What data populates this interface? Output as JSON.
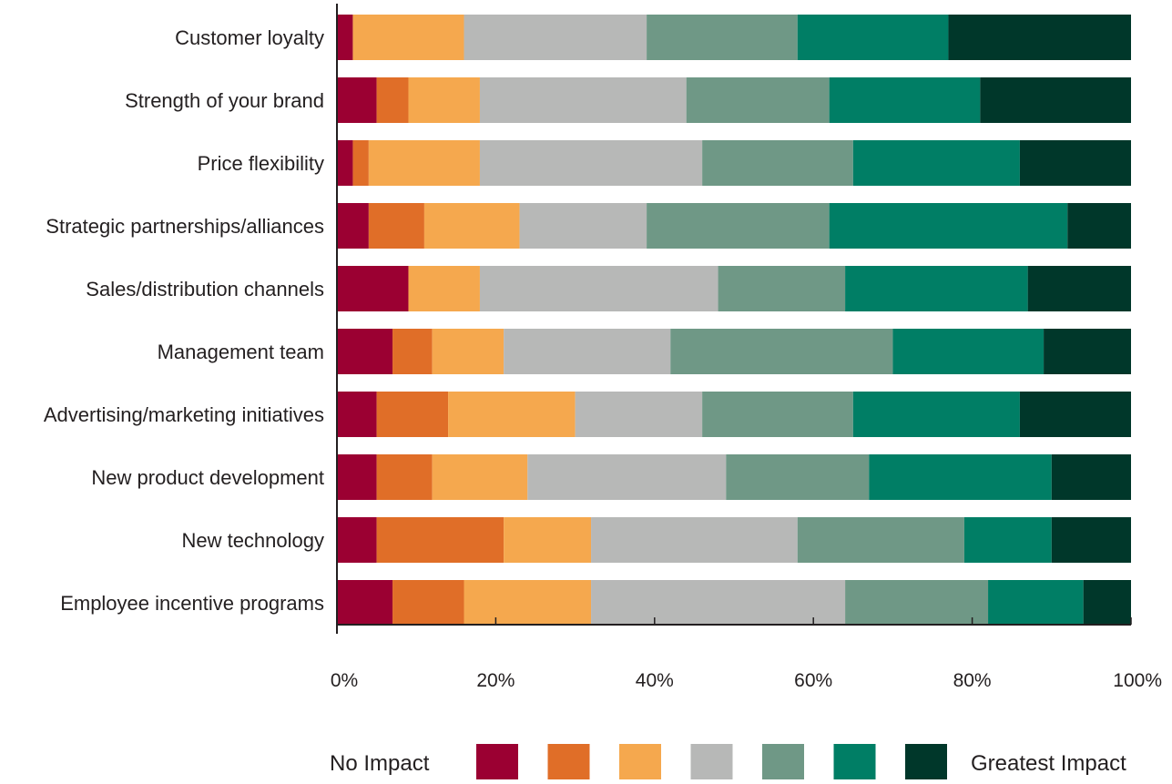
{
  "chart_data": {
    "type": "bar",
    "orientation": "horizontal",
    "stacked": true,
    "percent_stacked": true,
    "title": "",
    "xlabel": "",
    "ylabel": "",
    "xlim": [
      0,
      100
    ],
    "x_ticks": [
      "0%",
      "20%",
      "40%",
      "60%",
      "80%",
      "100%"
    ],
    "grid": false,
    "legend": {
      "placement": "bottom",
      "low_label": "No Impact",
      "high_label": "Greatest Impact"
    },
    "categories": [
      "Customer loyalty",
      "Strength of your brand",
      "Price flexibility",
      "Strategic partnerships/alliances",
      "Sales/distribution channels",
      "Management team",
      "Advertising/marketing initiatives",
      "New product development",
      "New technology",
      "Employee incentive programs"
    ],
    "series": [
      {
        "color": "#9b0032",
        "values": [
          2,
          5,
          2,
          4,
          9,
          7,
          5,
          5,
          5,
          7
        ]
      },
      {
        "color": "#e06e28",
        "values": [
          0,
          4,
          2,
          7,
          0,
          5,
          9,
          7,
          16,
          9
        ]
      },
      {
        "color": "#f5a84e",
        "values": [
          14,
          9,
          14,
          12,
          9,
          9,
          16,
          12,
          11,
          16
        ]
      },
      {
        "color": "#b7b8b7",
        "values": [
          23,
          26,
          28,
          16,
          30,
          21,
          16,
          25,
          26,
          32
        ]
      },
      {
        "color": "#6f9886",
        "values": [
          19,
          18,
          19,
          23,
          16,
          28,
          19,
          18,
          21,
          18
        ]
      },
      {
        "color": "#007e65",
        "values": [
          19,
          19,
          21,
          30,
          23,
          19,
          21,
          23,
          11,
          12
        ]
      },
      {
        "color": "#00372a",
        "values": [
          23,
          19,
          14,
          8,
          13,
          11,
          14,
          10,
          10,
          6
        ]
      }
    ]
  }
}
